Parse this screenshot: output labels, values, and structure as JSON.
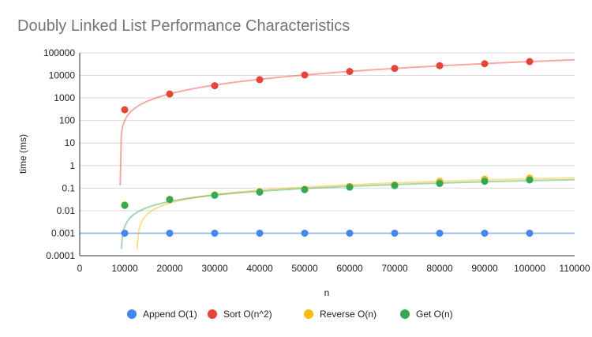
{
  "chart_data": {
    "type": "scatter",
    "title": "Doubly Linked List Performance Characteristics",
    "xlabel": "n",
    "ylabel": "time (ms)",
    "x_scale": "linear",
    "y_scale": "log",
    "xlim": [
      0,
      110000
    ],
    "ylim": [
      0.0001,
      100000
    ],
    "x_ticks": [
      "0",
      "10000",
      "20000",
      "30000",
      "40000",
      "50000",
      "60000",
      "70000",
      "80000",
      "90000",
      "100000",
      "110000"
    ],
    "y_ticks": [
      "100000",
      "10000",
      "1000",
      "100",
      "10",
      "1",
      "0.1",
      "0.01",
      "0.001",
      "0.0001"
    ],
    "grid": true,
    "legend_position": "bottom",
    "trendlines": true,
    "series": [
      {
        "name": "Append O(1)",
        "color": "#4285f4",
        "x": [
          10000,
          20000,
          30000,
          40000,
          50000,
          60000,
          70000,
          80000,
          90000,
          100000
        ],
        "y": [
          0.001,
          0.001,
          0.001,
          0.001,
          0.001,
          0.001,
          0.001,
          0.001,
          0.001,
          0.001
        ]
      },
      {
        "name": "Sort O(n^2)",
        "color": "#ea4335",
        "x": [
          10000,
          20000,
          30000,
          40000,
          50000,
          60000,
          70000,
          80000,
          90000,
          100000
        ],
        "y": [
          300,
          1500,
          3500,
          6500,
          10500,
          15000,
          20500,
          27000,
          33000,
          41000
        ]
      },
      {
        "name": "Reverse O(n)",
        "color": "#fbbc04",
        "x": [
          10000,
          20000,
          30000,
          40000,
          50000,
          60000,
          70000,
          80000,
          90000,
          100000
        ],
        "y": [
          0.018,
          0.032,
          0.05,
          0.07,
          0.09,
          0.12,
          0.14,
          0.2,
          0.25,
          0.28
        ]
      },
      {
        "name": "Get O(n)",
        "color": "#34a853",
        "x": [
          10000,
          20000,
          30000,
          40000,
          50000,
          60000,
          70000,
          80000,
          90000,
          100000
        ],
        "y": [
          0.017,
          0.031,
          0.048,
          0.066,
          0.085,
          0.11,
          0.13,
          0.16,
          0.2,
          0.23
        ]
      }
    ]
  }
}
